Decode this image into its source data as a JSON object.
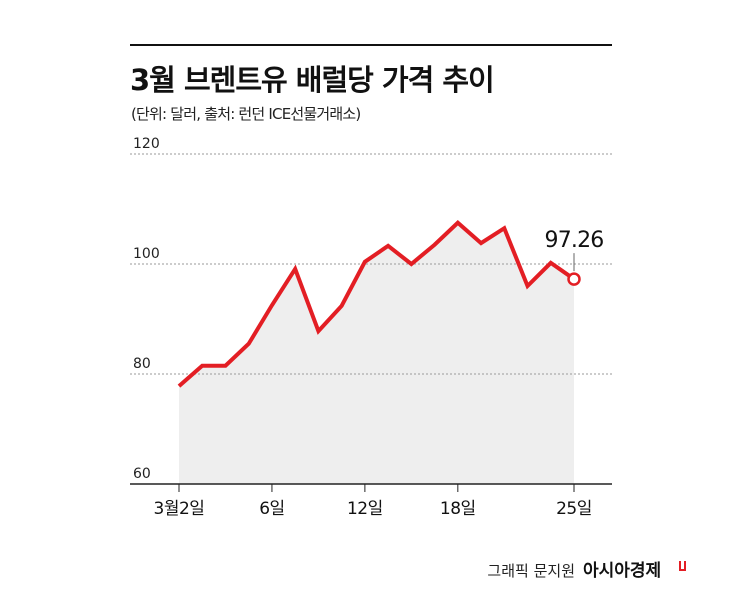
{
  "chart_data": {
    "type": "line",
    "title": "3월 브렌트유 배럴당 가격 추이",
    "subtitle": "(단위: 달러, 출처: 런던 ICE선물거래소)",
    "categories": [
      "3월2일",
      null,
      null,
      null,
      "6일",
      null,
      null,
      null,
      "12일",
      null,
      null,
      null,
      "18일",
      null,
      null,
      null,
      null,
      "25일"
    ],
    "series": [
      {
        "color": "#e31e24",
        "values": [
          77.8,
          81.5,
          81.5,
          85.5,
          92.5,
          99.1,
          87.8,
          92.4,
          100.4,
          103.3,
          100.0,
          103.5,
          107.5,
          103.8,
          106.5,
          96.0,
          100.2,
          97.26
        ]
      }
    ],
    "ylim": [
      60,
      120
    ],
    "yticks": [
      60,
      80,
      100,
      120
    ],
    "grid": true,
    "area_fill": "#eeeeee",
    "credit": "그래픽 문지원",
    "publisher": "아시아경제"
  }
}
